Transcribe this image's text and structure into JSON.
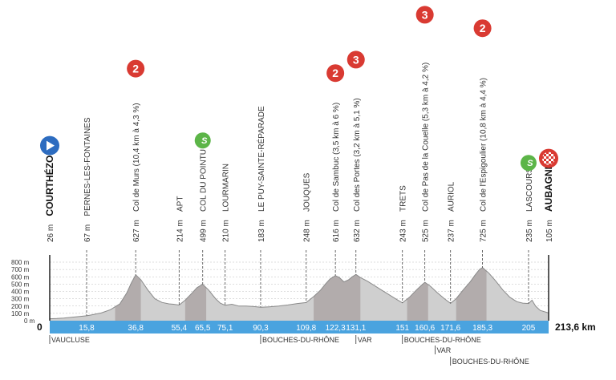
{
  "chart_data": {
    "type": "area",
    "title": "",
    "xlabel": "",
    "ylabel": "",
    "distance_total_label": "213,6 km",
    "start_label": "0",
    "xlim": [
      0,
      213.6
    ],
    "ylim": [
      0,
      800
    ],
    "y_ticks": [
      {
        "value": 0,
        "label": "0 m"
      },
      {
        "value": 100,
        "label": "100 m"
      },
      {
        "value": 200,
        "label": "200 m"
      },
      {
        "value": 300,
        "label": "300 m"
      },
      {
        "value": 400,
        "label": "400 m"
      },
      {
        "value": 500,
        "label": "500 m"
      },
      {
        "value": 600,
        "label": "600 m"
      },
      {
        "value": 700,
        "label": "700 m"
      },
      {
        "value": 800,
        "label": "800 m"
      }
    ],
    "profile": [
      [
        0,
        26
      ],
      [
        3,
        30
      ],
      [
        6,
        35
      ],
      [
        9,
        45
      ],
      [
        12,
        55
      ],
      [
        15.8,
        67
      ],
      [
        18,
        80
      ],
      [
        22,
        105
      ],
      [
        26,
        150
      ],
      [
        30,
        230
      ],
      [
        33,
        380
      ],
      [
        35,
        520
      ],
      [
        36.8,
        627
      ],
      [
        39,
        560
      ],
      [
        42,
        420
      ],
      [
        45,
        300
      ],
      [
        48,
        250
      ],
      [
        51,
        230
      ],
      [
        53,
        225
      ],
      [
        55.4,
        214
      ],
      [
        58,
        280
      ],
      [
        61,
        380
      ],
      [
        63,
        450
      ],
      [
        65.5,
        499
      ],
      [
        68,
        420
      ],
      [
        71,
        300
      ],
      [
        73,
        240
      ],
      [
        75.1,
        210
      ],
      [
        78,
        225
      ],
      [
        81,
        200
      ],
      [
        84,
        200
      ],
      [
        87,
        195
      ],
      [
        90.3,
        183
      ],
      [
        94,
        190
      ],
      [
        98,
        200
      ],
      [
        102,
        215
      ],
      [
        106,
        235
      ],
      [
        109.8,
        248
      ],
      [
        113,
        330
      ],
      [
        116,
        420
      ],
      [
        118,
        500
      ],
      [
        120,
        570
      ],
      [
        122.3,
        616
      ],
      [
        124,
        590
      ],
      [
        126,
        530
      ],
      [
        128,
        560
      ],
      [
        129.5,
        600
      ],
      [
        131.1,
        632
      ],
      [
        133,
        590
      ],
      [
        136,
        540
      ],
      [
        139,
        480
      ],
      [
        142,
        420
      ],
      [
        145,
        360
      ],
      [
        148,
        300
      ],
      [
        151,
        243
      ],
      [
        154,
        320
      ],
      [
        157,
        420
      ],
      [
        159,
        480
      ],
      [
        160.6,
        525
      ],
      [
        163,
        470
      ],
      [
        166,
        380
      ],
      [
        169,
        300
      ],
      [
        171.6,
        237
      ],
      [
        174,
        300
      ],
      [
        177,
        420
      ],
      [
        180,
        530
      ],
      [
        182,
        620
      ],
      [
        184,
        700
      ],
      [
        185.3,
        725
      ],
      [
        188,
        650
      ],
      [
        191,
        540
      ],
      [
        194,
        420
      ],
      [
        197,
        320
      ],
      [
        200,
        260
      ],
      [
        202.5,
        240
      ],
      [
        205,
        235
      ],
      [
        206.5,
        280
      ],
      [
        208,
        200
      ],
      [
        210,
        140
      ],
      [
        213.6,
        105
      ]
    ],
    "points": [
      {
        "km": 0,
        "km_label": "",
        "alt": 26,
        "label": "26 m",
        "name": "COURTHÉZON",
        "kind": "start"
      },
      {
        "km": 15.8,
        "km_label": "15,8",
        "alt": 67,
        "label": "67 m",
        "name": "PERNES-LES-FONTAINES",
        "kind": "town"
      },
      {
        "km": 36.8,
        "km_label": "36,8",
        "alt": 627,
        "label": "627 m",
        "name": "Col de Murs (10,4 km à 4,3 %)",
        "kind": "climb",
        "category": "2"
      },
      {
        "km": 55.4,
        "km_label": "55,4",
        "alt": 214,
        "label": "214 m",
        "name": "APT",
        "kind": "town"
      },
      {
        "km": 65.5,
        "km_label": "65,5",
        "alt": 499,
        "label": "499 m",
        "name": "COL DU POINTU",
        "kind": "sprint",
        "symbol": "S"
      },
      {
        "km": 75.1,
        "km_label": "75,1",
        "alt": 210,
        "label": "210 m",
        "name": "LOURMARIN",
        "kind": "town"
      },
      {
        "km": 90.3,
        "km_label": "90,3",
        "alt": 183,
        "label": "183 m",
        "name": "LE PUY-SAINTE-RÉPARADE",
        "kind": "town"
      },
      {
        "km": 109.8,
        "km_label": "109,8",
        "alt": 248,
        "label": "248 m",
        "name": "JOUQUES",
        "kind": "town"
      },
      {
        "km": 122.3,
        "km_label": "122,3",
        "alt": 616,
        "label": "616 m",
        "name": "Col de Sambuc (3,5 km à 6 %)",
        "kind": "climb",
        "category": "2"
      },
      {
        "km": 131.1,
        "km_label": "131,1",
        "alt": 632,
        "label": "632 m",
        "name": "Col des Portes (3,2 km à 5,1 %)",
        "kind": "climb",
        "category": "3"
      },
      {
        "km": 151,
        "km_label": "151",
        "alt": 243,
        "label": "243 m",
        "name": "TRETS",
        "kind": "town"
      },
      {
        "km": 160.6,
        "km_label": "160,6",
        "alt": 525,
        "label": "525 m",
        "name": "Col de Pas de la Couelle (5,3 km à 4,2 %)",
        "kind": "climb",
        "category": "3"
      },
      {
        "km": 171.6,
        "km_label": "171,6",
        "alt": 237,
        "label": "237 m",
        "name": "AURIOL",
        "kind": "town"
      },
      {
        "km": 185.3,
        "km_label": "185,3",
        "alt": 725,
        "label": "725 m",
        "name": "Col de l'Espigoulier (10,8 km à 4,4 %)",
        "kind": "climb",
        "category": "2"
      },
      {
        "km": 205,
        "km_label": "205",
        "alt": 235,
        "label": "235 m",
        "name": "LASCOURS",
        "kind": "sprint",
        "symbol": "S"
      },
      {
        "km": 213.6,
        "km_label": "",
        "alt": 105,
        "label": "105 m",
        "name": "AUBAGNE",
        "kind": "finish"
      }
    ],
    "regions": [
      {
        "km": 0,
        "label": "VAUCLUSE",
        "row": 0
      },
      {
        "km": 90.3,
        "label": "BOUCHES-DU-RHÔNE",
        "row": 0
      },
      {
        "km": 131.1,
        "label": "VAR",
        "row": 0
      },
      {
        "km": 151,
        "label": "BOUCHES-DU-RHÔNE",
        "row": 0
      },
      {
        "km": 165,
        "label": "VAR",
        "row": 1
      },
      {
        "km": 171.6,
        "label": "BOUCHES-DU-RHÔNE",
        "row": 2
      }
    ],
    "colors": {
      "profile_fill": "#cfcfcf",
      "profile_stroke": "#8a8a8a",
      "climb_shade": "#9a9090",
      "km_bar": "#4aa3df",
      "climb_badge": "#d93a32",
      "sprint_badge": "#5cb548",
      "start_badge": "#2d6cc0",
      "finish_badge": "#d93a32"
    }
  }
}
